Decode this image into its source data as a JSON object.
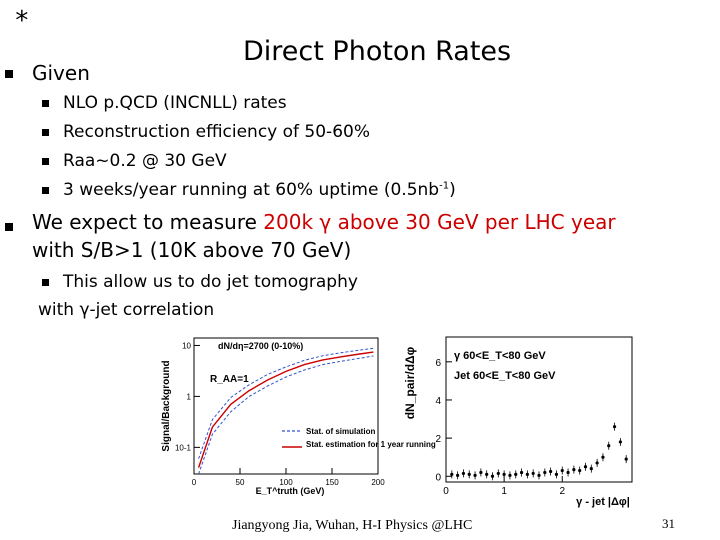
{
  "marker": "*",
  "title": "Direct Photon Rates",
  "bullets": {
    "given": "Given",
    "sub": [
      "NLO p.QCD (INCNLL) rates",
      "Reconstruction efficiency of 50-60%",
      "Raa~0.2 @ 30 GeV",
      "3 weeks/year running at 60% uptime (0.5nb"
    ],
    "sup_exp": "-1",
    "sub_close": ")",
    "expect_prefix": "We expect to measure ",
    "expect_red": "200k γ above 30 GeV per LHC year",
    "expect_line2": "with S/B>1 (10K above 70 GeV)",
    "tomo_line1": "This allow us to do jet tomography",
    "tomo_line2": "with γ-jet correlation"
  },
  "footer": "Jiangyong Jia, Wuhan, H-I Physics @LHC",
  "page_number": "31",
  "chart_data": [
    {
      "type": "line",
      "title": "dN/dη=2700 (0-10%)",
      "annotation": "R_AA=1",
      "xlabel": "E_T^truth (GeV)",
      "ylabel": "Signal/Background",
      "yscale": "log",
      "xlim": [
        0,
        200
      ],
      "ylim": [
        0.03,
        14
      ],
      "x_ticks": [
        "0",
        "50",
        "100",
        "150",
        "200"
      ],
      "y_ticks": [
        "10",
        "1",
        "10-1"
      ],
      "legend": [
        "Stat. of simulation",
        "Stat. estimation for 1 year running"
      ],
      "legend_position": "bottom-right",
      "series": [
        {
          "x": [
            5,
            20,
            40,
            60,
            80,
            100,
            120,
            140,
            160,
            180,
            195
          ],
          "y": [
            0.04,
            0.25,
            0.7,
            1.3,
            2.1,
            3.1,
            4.2,
            5.2,
            6.0,
            6.8,
            7.4
          ]
        },
        {
          "x": [
            5,
            20,
            40,
            60,
            80,
            100,
            120,
            140,
            160,
            180,
            195
          ],
          "y": [
            0.06,
            0.35,
            0.95,
            1.7,
            2.7,
            3.8,
            5.1,
            6.3,
            7.2,
            8.1,
            8.8
          ]
        },
        {
          "x": [
            5,
            20,
            40,
            60,
            80,
            100,
            120,
            140,
            160,
            180,
            195
          ],
          "y": [
            0.03,
            0.18,
            0.5,
            1.0,
            1.6,
            2.4,
            3.3,
            4.2,
            4.9,
            5.6,
            6.2
          ]
        }
      ]
    },
    {
      "type": "scatter",
      "ylabel": "dN_pair/dΔφ",
      "xlabel": "γ - jet |Δφ|",
      "legend": [
        "γ 60<E_T<80 GeV",
        "Jet 60<E_T<80 GeV"
      ],
      "legend_position": "top-left",
      "xlim": [
        0,
        3.2
      ],
      "ylim": [
        -0.3,
        7.3
      ],
      "x_ticks": [
        "0",
        "1",
        "2"
      ],
      "y_ticks": [
        "0",
        "2",
        "4",
        "6"
      ],
      "x": [
        0.1,
        0.2,
        0.3,
        0.4,
        0.5,
        0.6,
        0.7,
        0.8,
        0.9,
        1.0,
        1.1,
        1.2,
        1.3,
        1.4,
        1.5,
        1.6,
        1.7,
        1.8,
        1.9,
        2.0,
        2.1,
        2.2,
        2.3,
        2.4,
        2.5,
        2.6,
        2.7,
        2.8,
        2.9,
        3.0,
        3.1
      ],
      "y": [
        0.1,
        0.05,
        0.15,
        0.1,
        0.05,
        0.2,
        0.1,
        0.0,
        0.15,
        0.1,
        0.05,
        0.1,
        0.2,
        0.1,
        0.15,
        0.05,
        0.2,
        0.25,
        0.1,
        0.3,
        0.2,
        0.35,
        0.3,
        0.5,
        0.4,
        0.7,
        1.0,
        1.6,
        2.6,
        1.8,
        0.9
      ]
    }
  ]
}
